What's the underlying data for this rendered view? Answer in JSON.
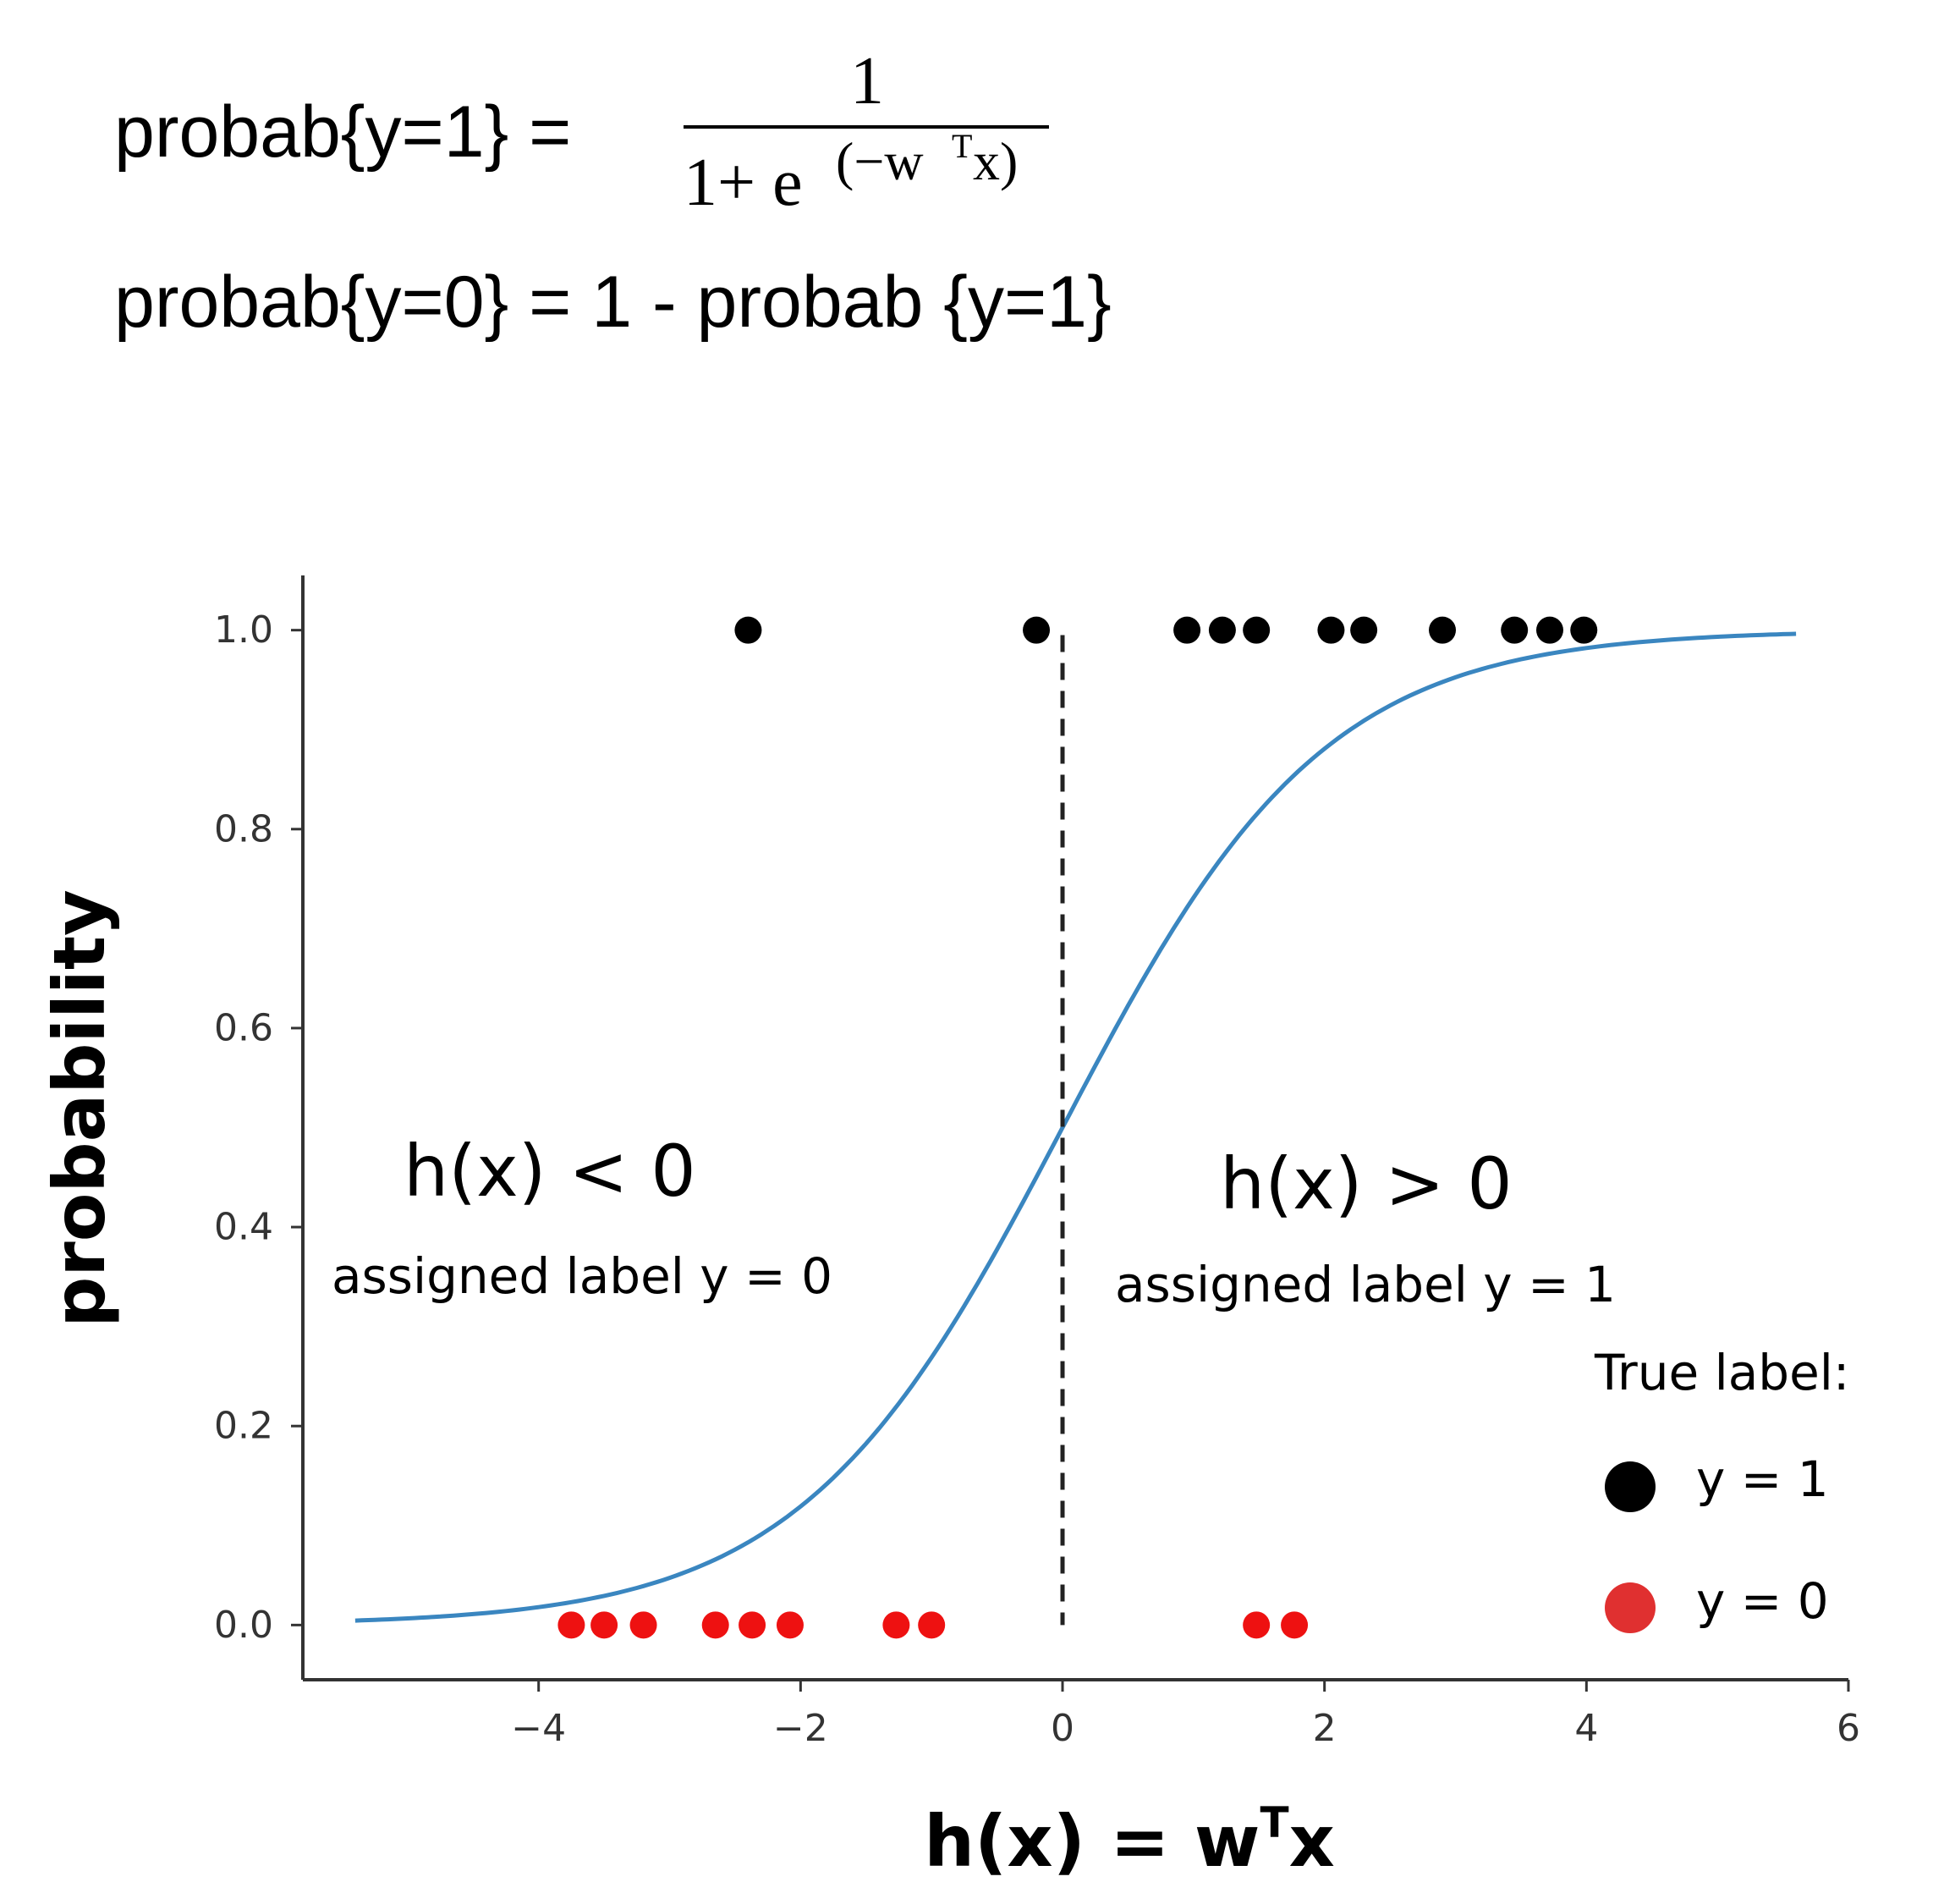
{
  "formulas": {
    "eq1_lhs": "probab{y=1} =",
    "eq1_numerator": "1",
    "eq1_denominator_base": "1+ e",
    "eq1_exponent_open": "(−w",
    "eq1_exponent_T": "T",
    "eq1_exponent_close": "x)",
    "eq2": "probab{y=0} = 1 - probab {y=1}"
  },
  "annotations": {
    "left_title": "h(x) < 0",
    "left_sub": "assigned label y = 0",
    "right_title": "h(x) > 0",
    "right_sub": "assigned label y = 1"
  },
  "legend": {
    "title": "True label:",
    "items": [
      {
        "label": "y = 1",
        "color": "#000000"
      },
      {
        "label": "y =  0",
        "color": "#e03030"
      }
    ]
  },
  "chart_data": {
    "type": "scatter",
    "xlabel_main": "h(x) = w",
    "xlabel_sup": "T",
    "xlabel_tail": "x",
    "ylabel": "probability",
    "xlim": [
      -5.8,
      6
    ],
    "ylim": [
      -0.055,
      1.055
    ],
    "xticks": [
      -4,
      -2,
      0,
      2,
      4,
      6
    ],
    "xtick_labels": [
      "−4",
      "−2",
      "0",
      "2",
      "4",
      "6"
    ],
    "yticks": [
      0.0,
      0.2,
      0.4,
      0.6,
      0.8,
      1.0
    ],
    "ytick_labels": [
      "0.0",
      "0.2",
      "0.4",
      "0.6",
      "0.8",
      "1.0"
    ],
    "curve": {
      "type": "sigmoid",
      "x_range": [
        -5.4,
        5.6
      ],
      "color": "#3a86c0"
    },
    "threshold": {
      "x": 0,
      "style": "dashed",
      "color": "#222222"
    },
    "series": [
      {
        "label": "y = 1",
        "color": "#000000",
        "y": 1.0,
        "x": [
          -2.4,
          -0.2,
          0.95,
          1.22,
          1.48,
          2.05,
          2.3,
          2.9,
          3.45,
          3.72,
          3.98
        ]
      },
      {
        "label": "y = 0",
        "color": "#ee1111",
        "y": 0.0,
        "x": [
          -3.75,
          -3.5,
          -3.2,
          -2.65,
          -2.37,
          -2.08,
          -1.27,
          -1.0,
          1.48,
          1.77
        ]
      }
    ]
  }
}
